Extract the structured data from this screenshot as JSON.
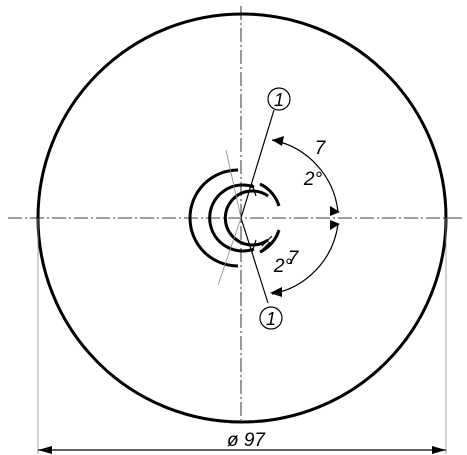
{
  "diagram": {
    "diameter_label": "ø 97",
    "balloons": [
      {
        "id": "top",
        "label": "1"
      },
      {
        "id": "bottom",
        "label": "1"
      }
    ],
    "angle_upper": {
      "value": "7",
      "unit": "2°"
    },
    "angle_lower": {
      "value": "7",
      "unit": "2°"
    }
  }
}
